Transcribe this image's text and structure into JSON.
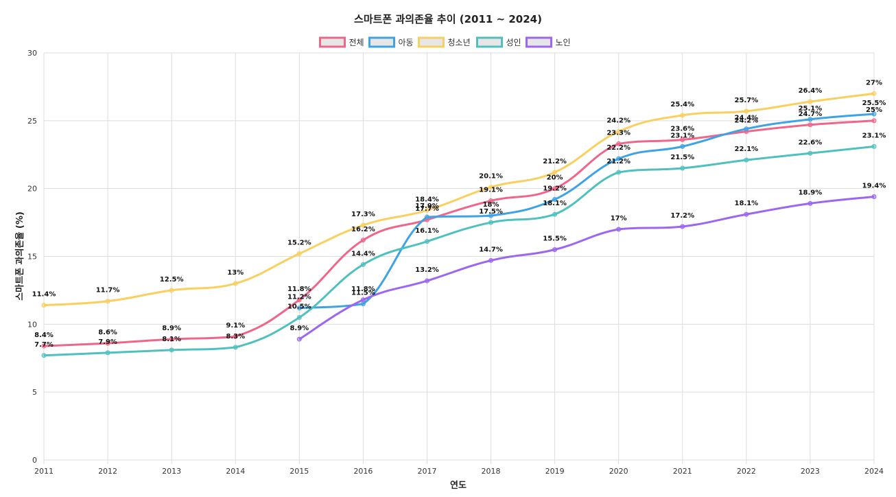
{
  "chart_data": {
    "type": "line",
    "title": "스마트폰 과의존율 추이 (2011 ~ 2024)",
    "xlabel": "연도",
    "ylabel": "스마트폰 과의존율 (%)",
    "ylim": [
      0,
      30
    ],
    "yticks": [
      0,
      5,
      10,
      15,
      20,
      25,
      30
    ],
    "categories": [
      "2011",
      "2012",
      "2013",
      "2014",
      "2015",
      "2016",
      "2017",
      "2018",
      "2019",
      "2020",
      "2021",
      "2022",
      "2023",
      "2024"
    ],
    "grid": true,
    "legend_position": "top-center",
    "series": [
      {
        "name": "전체",
        "color": "#f0668a",
        "values": [
          8.4,
          8.6,
          8.9,
          9.1,
          11.8,
          16.2,
          17.7,
          19.1,
          20,
          23.3,
          23.6,
          24.2,
          24.7,
          25
        ]
      },
      {
        "name": "아동",
        "color": "#3ea3e4",
        "values": [
          null,
          null,
          null,
          null,
          11.2,
          11.5,
          17.9,
          18,
          19.2,
          22.2,
          23.1,
          24.4,
          25.1,
          25.5
        ]
      },
      {
        "name": "청소년",
        "color": "#f9cf5d",
        "values": [
          11.4,
          11.7,
          12.5,
          13,
          15.2,
          17.3,
          18.4,
          20.1,
          21.2,
          24.2,
          25.4,
          25.7,
          26.4,
          27
        ]
      },
      {
        "name": "성인",
        "color": "#4fc0c0",
        "values": [
          7.7,
          7.9,
          8.1,
          8.3,
          10.5,
          14.4,
          16.1,
          17.5,
          18.1,
          21.2,
          21.5,
          22.1,
          22.6,
          23.1
        ]
      },
      {
        "name": "노인",
        "color": "#9d66f0",
        "values": [
          null,
          null,
          null,
          null,
          8.9,
          11.8,
          13.2,
          14.7,
          15.5,
          17,
          17.2,
          18.1,
          18.9,
          19.4
        ]
      }
    ]
  }
}
